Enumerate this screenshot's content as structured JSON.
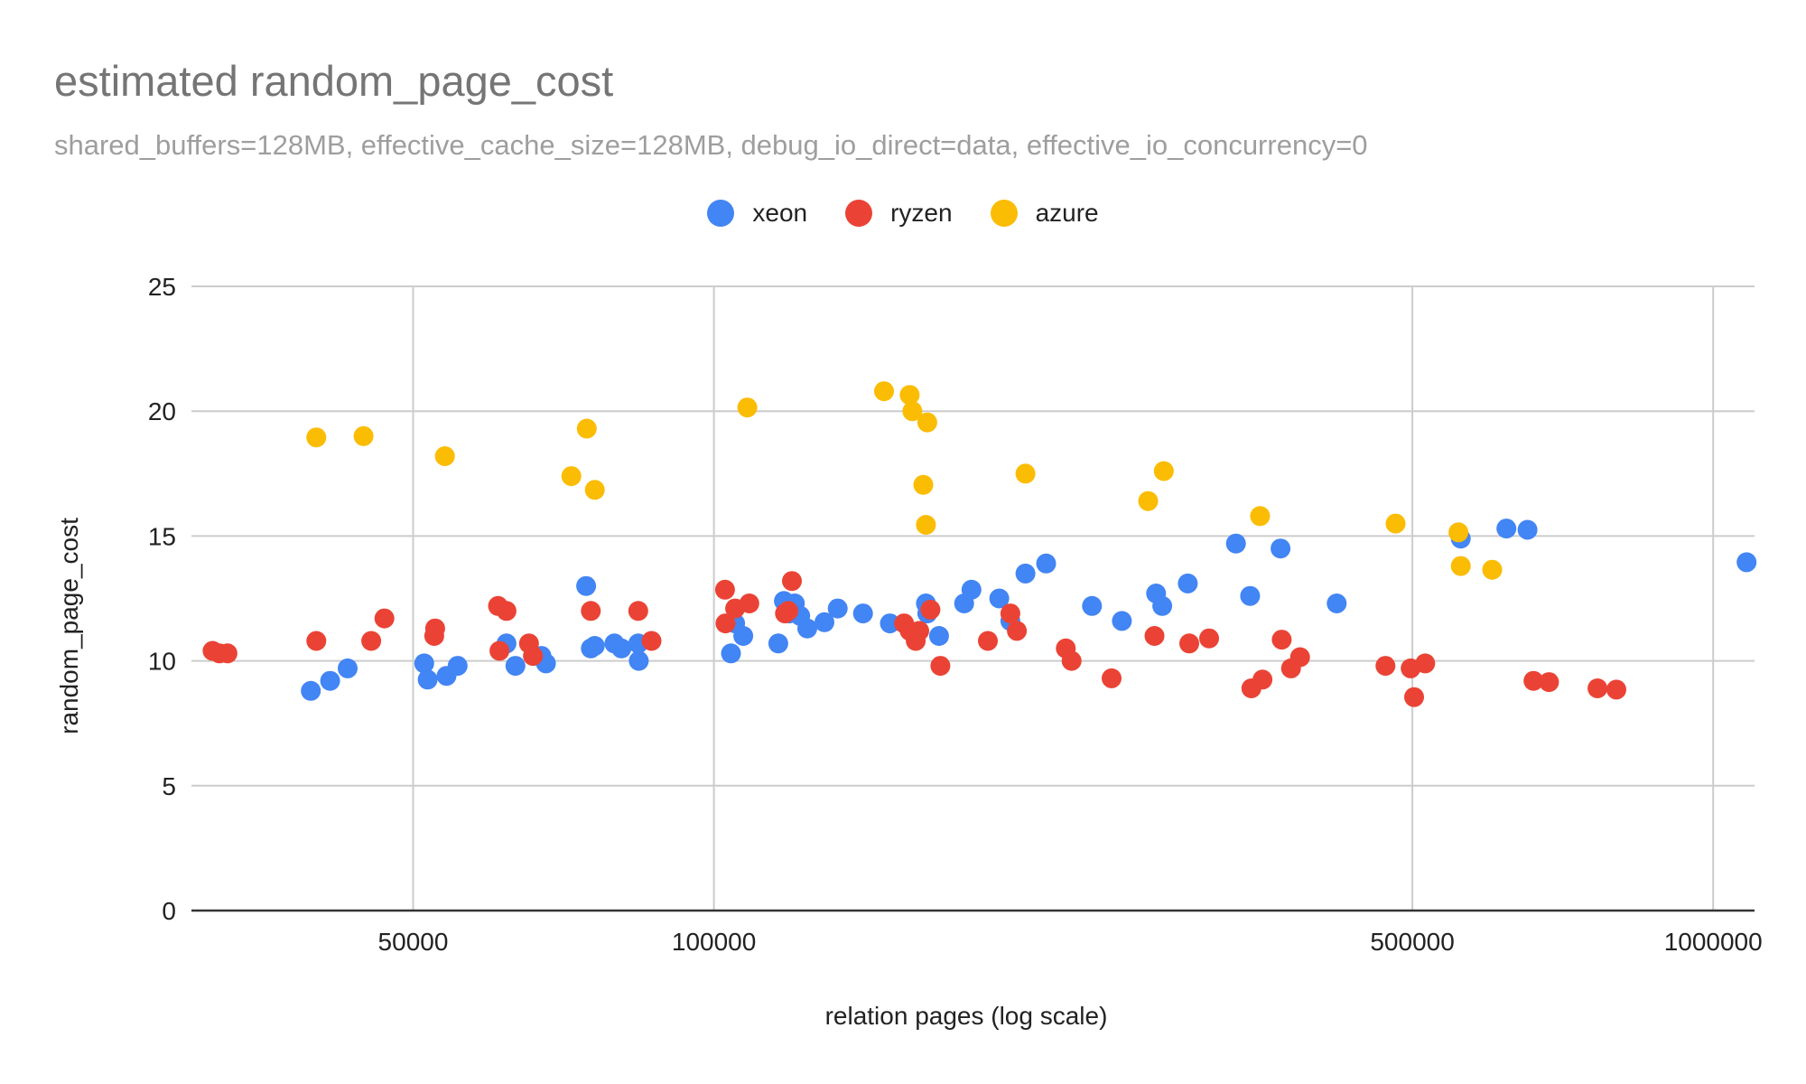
{
  "chart_data": {
    "type": "scatter",
    "title": "estimated random_page_cost",
    "subtitle": "shared_buffers=128MB, effective_cache_size=128MB, debug_io_direct=data, effective_io_concurrency=0",
    "xlabel": "relation pages (log scale)",
    "ylabel": "random_page_cost",
    "x_scale": "log",
    "xlim": [
      30000,
      1100000
    ],
    "ylim": [
      0,
      25
    ],
    "x_ticks": [
      50000,
      100000,
      500000,
      1000000
    ],
    "y_ticks": [
      0,
      5,
      10,
      15,
      20,
      25
    ],
    "grid": true,
    "legend_position": "top",
    "series": [
      {
        "name": "xeon",
        "color": "#4285f4",
        "points": [
          [
            39500,
            8.8
          ],
          [
            41300,
            9.2
          ],
          [
            43000,
            9.7
          ],
          [
            51300,
            9.9
          ],
          [
            51700,
            9.25
          ],
          [
            54000,
            9.4
          ],
          [
            55400,
            9.8
          ],
          [
            62000,
            10.7
          ],
          [
            63300,
            9.8
          ],
          [
            66000,
            10.2
          ],
          [
            67200,
            10.2
          ],
          [
            67900,
            9.9
          ],
          [
            74500,
            13.0
          ],
          [
            75300,
            10.5
          ],
          [
            76000,
            10.6
          ],
          [
            79500,
            10.7
          ],
          [
            80800,
            10.5
          ],
          [
            84000,
            10.7
          ],
          [
            84100,
            10.0
          ],
          [
            104000,
            10.3
          ],
          [
            105000,
            11.5
          ],
          [
            107000,
            11.0
          ],
          [
            116000,
            10.7
          ],
          [
            117500,
            12.4
          ],
          [
            118500,
            12.3
          ],
          [
            119000,
            11.9
          ],
          [
            120500,
            12.3
          ],
          [
            122000,
            11.8
          ],
          [
            124000,
            11.3
          ],
          [
            129000,
            11.55
          ],
          [
            133000,
            12.1
          ],
          [
            141000,
            11.9
          ],
          [
            150000,
            11.5
          ],
          [
            163000,
            12.3
          ],
          [
            163500,
            11.9
          ],
          [
            168000,
            11.0
          ],
          [
            178000,
            12.3
          ],
          [
            181000,
            12.85
          ],
          [
            193000,
            12.5
          ],
          [
            198000,
            11.6
          ],
          [
            205000,
            13.5
          ],
          [
            215000,
            13.9
          ],
          [
            239000,
            12.2
          ],
          [
            256000,
            11.6
          ],
          [
            277000,
            12.7
          ],
          [
            281000,
            12.2
          ],
          [
            298000,
            13.1
          ],
          [
            333000,
            14.7
          ],
          [
            344000,
            12.6
          ],
          [
            369000,
            14.5
          ],
          [
            420000,
            12.3
          ],
          [
            559000,
            14.9
          ],
          [
            621000,
            15.3
          ],
          [
            652000,
            15.25
          ],
          [
            1080000,
            13.95
          ]
        ]
      },
      {
        "name": "ryzen",
        "color": "#ea4335",
        "points": [
          [
            31500,
            10.4
          ],
          [
            32000,
            10.3
          ],
          [
            32600,
            10.3
          ],
          [
            40000,
            10.8
          ],
          [
            45400,
            10.8
          ],
          [
            46800,
            11.7
          ],
          [
            52500,
            11.0
          ],
          [
            52600,
            11.3
          ],
          [
            60800,
            12.2
          ],
          [
            61000,
            10.4
          ],
          [
            62000,
            12.0
          ],
          [
            65300,
            10.7
          ],
          [
            65900,
            10.2
          ],
          [
            75300,
            12.0
          ],
          [
            84000,
            12.0
          ],
          [
            86600,
            10.8
          ],
          [
            102600,
            12.85
          ],
          [
            102700,
            11.5
          ],
          [
            105000,
            12.1
          ],
          [
            108500,
            12.3
          ],
          [
            117800,
            11.9
          ],
          [
            118700,
            12.0
          ],
          [
            119700,
            13.2
          ],
          [
            155000,
            11.5
          ],
          [
            157000,
            11.2
          ],
          [
            159200,
            10.8
          ],
          [
            160500,
            11.2
          ],
          [
            164700,
            12.05
          ],
          [
            168500,
            9.8
          ],
          [
            188000,
            10.8
          ],
          [
            198000,
            11.9
          ],
          [
            201000,
            11.2
          ],
          [
            225000,
            10.5
          ],
          [
            228000,
            10.0
          ],
          [
            250000,
            9.3
          ],
          [
            276000,
            11.0
          ],
          [
            299000,
            10.7
          ],
          [
            313000,
            10.9
          ],
          [
            345000,
            8.9
          ],
          [
            354000,
            9.25
          ],
          [
            370000,
            10.85
          ],
          [
            378000,
            9.7
          ],
          [
            386000,
            10.15
          ],
          [
            470000,
            9.8
          ],
          [
            498000,
            9.7
          ],
          [
            502000,
            8.55
          ],
          [
            515000,
            9.9
          ],
          [
            661000,
            9.2
          ],
          [
            685000,
            9.15
          ],
          [
            766000,
            8.9
          ],
          [
            800000,
            8.85
          ]
        ]
      },
      {
        "name": "azure",
        "color": "#fbbc04",
        "points": [
          [
            40000,
            18.95
          ],
          [
            44600,
            19.0
          ],
          [
            53800,
            18.2
          ],
          [
            74600,
            19.3
          ],
          [
            76000,
            16.85
          ],
          [
            72000,
            17.4
          ],
          [
            108000,
            20.15
          ],
          [
            148000,
            20.8
          ],
          [
            157000,
            20.65
          ],
          [
            158000,
            20.0
          ],
          [
            162000,
            17.05
          ],
          [
            163000,
            15.45
          ],
          [
            163500,
            19.55
          ],
          [
            205000,
            17.5
          ],
          [
            272000,
            16.4
          ],
          [
            282000,
            17.6
          ],
          [
            352000,
            15.8
          ],
          [
            481000,
            15.5
          ],
          [
            556000,
            15.15
          ],
          [
            559000,
            13.8
          ],
          [
            601000,
            13.65
          ]
        ]
      }
    ]
  }
}
